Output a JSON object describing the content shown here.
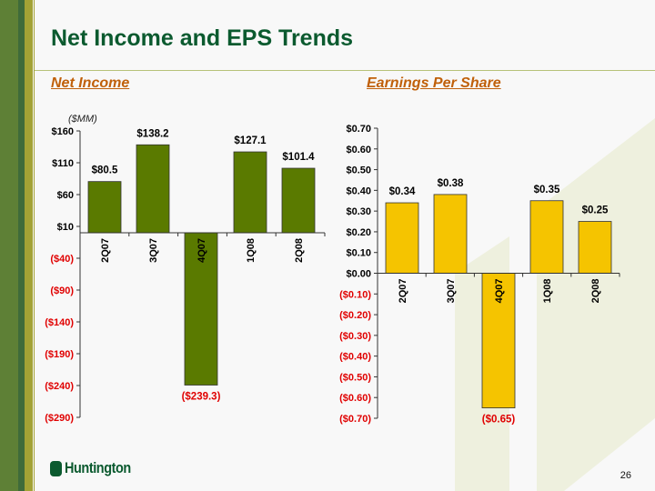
{
  "slide": {
    "title": "Net Income and EPS Trends",
    "page_number": "26",
    "logo_text": "Huntington"
  },
  "colors": {
    "net_income_bar": "#5a7a00",
    "eps_bar": "#f5c400",
    "negative_label": "#e00000",
    "title": "#0b5a2f",
    "subtitle": "#c0600a"
  },
  "chart_data": [
    {
      "type": "bar",
      "title": "Net Income",
      "unit_label": "($MM)",
      "categories": [
        "2Q07",
        "3Q07",
        "4Q07",
        "1Q08",
        "2Q08"
      ],
      "values": [
        80.5,
        138.2,
        -239.3,
        127.1,
        101.4
      ],
      "data_labels": [
        "$80.5",
        "$138.2",
        "($239.3)",
        "$127.1",
        "$101.4"
      ],
      "ylim": [
        -290,
        160
      ],
      "ticks": [
        160,
        110,
        60,
        10,
        -40,
        -90,
        -140,
        -190,
        -240,
        -290
      ],
      "tick_labels": [
        "$160",
        "$110",
        "$60",
        "$10",
        "($40)",
        "($90)",
        "($140)",
        "($190)",
        "($240)",
        "($290)"
      ]
    },
    {
      "type": "bar",
      "title": "Earnings Per Share",
      "categories": [
        "2Q07",
        "3Q07",
        "4Q07",
        "1Q08",
        "2Q08"
      ],
      "values": [
        0.34,
        0.38,
        -0.65,
        0.35,
        0.25
      ],
      "data_labels": [
        "$0.34",
        "$0.38",
        "($0.65)",
        "$0.35",
        "$0.25"
      ],
      "ylim": [
        -0.7,
        0.7
      ],
      "ticks": [
        0.7,
        0.6,
        0.5,
        0.4,
        0.3,
        0.2,
        0.1,
        0,
        -0.1,
        -0.2,
        -0.3,
        -0.4,
        -0.5,
        -0.6,
        -0.7
      ],
      "tick_labels": [
        "$0.70",
        "$0.60",
        "$0.50",
        "$0.40",
        "$0.30",
        "$0.20",
        "$0.10",
        "$0.00",
        "($0.10)",
        "($0.20)",
        "($0.30)",
        "($0.40)",
        "($0.50)",
        "($0.60)",
        "($0.70)"
      ]
    }
  ]
}
